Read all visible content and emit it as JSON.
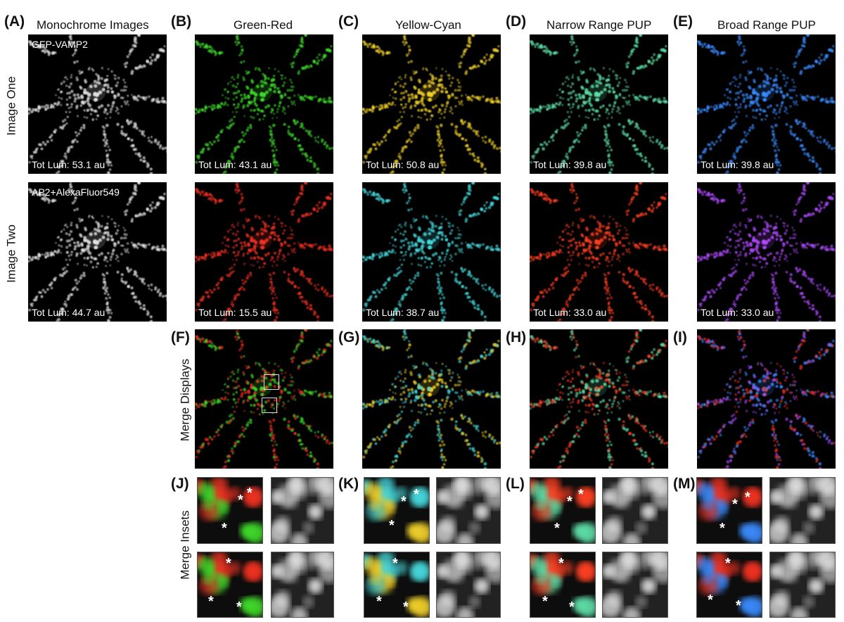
{
  "figure": {
    "panel_letters": {
      "A": "(A)",
      "B": "(B)",
      "C": "(C)",
      "D": "(D)",
      "E": "(E)",
      "F": "(F)",
      "G": "(G)",
      "H": "(H)",
      "I": "(I)",
      "J": "(J)",
      "K": "(K)",
      "L": "(L)",
      "M": "(M)"
    },
    "column_titles": {
      "A": "Monochrome Images",
      "B": "Green-Red",
      "C": "Yellow-Cyan",
      "D": "Narrow Range PUP",
      "E": "Broad Range PUP"
    },
    "row_labels": {
      "image_one": "Image One",
      "image_two": "Image Two",
      "merge_displays": "Merge Displays",
      "merge_insets": "Merge Insets"
    },
    "image_names": {
      "one": "GFP-VAMP2",
      "two": "AP2+AlexaFluor549"
    },
    "luminance": {
      "A1": "Tot Lum: 53.1 au",
      "A2": "Tot Lum: 44.7 au",
      "B1": "Tot Lum: 43.1 au",
      "B2": "Tot Lum: 15.5 au",
      "C1": "Tot Lum: 50.8 au",
      "C2": "Tot Lum: 38.7 au",
      "D1": "Tot Lum: 39.8 au",
      "D2": "Tot Lum: 33.0 au",
      "E1": "Tot Lum: 39.8 au",
      "E2": "Tot Lum: 33.0 au"
    },
    "star_symbol": "*",
    "colors": {
      "mono": "#e6e6e6",
      "green": "#3fdc2a",
      "red": "#f03020",
      "yellow": "#f2d12a",
      "cyan": "#46d8dc",
      "narrow_green": "#5fe0a8",
      "narrow_red": "#ff4020",
      "blue": "#3a8cff",
      "purple": "#b04cff"
    }
  }
}
